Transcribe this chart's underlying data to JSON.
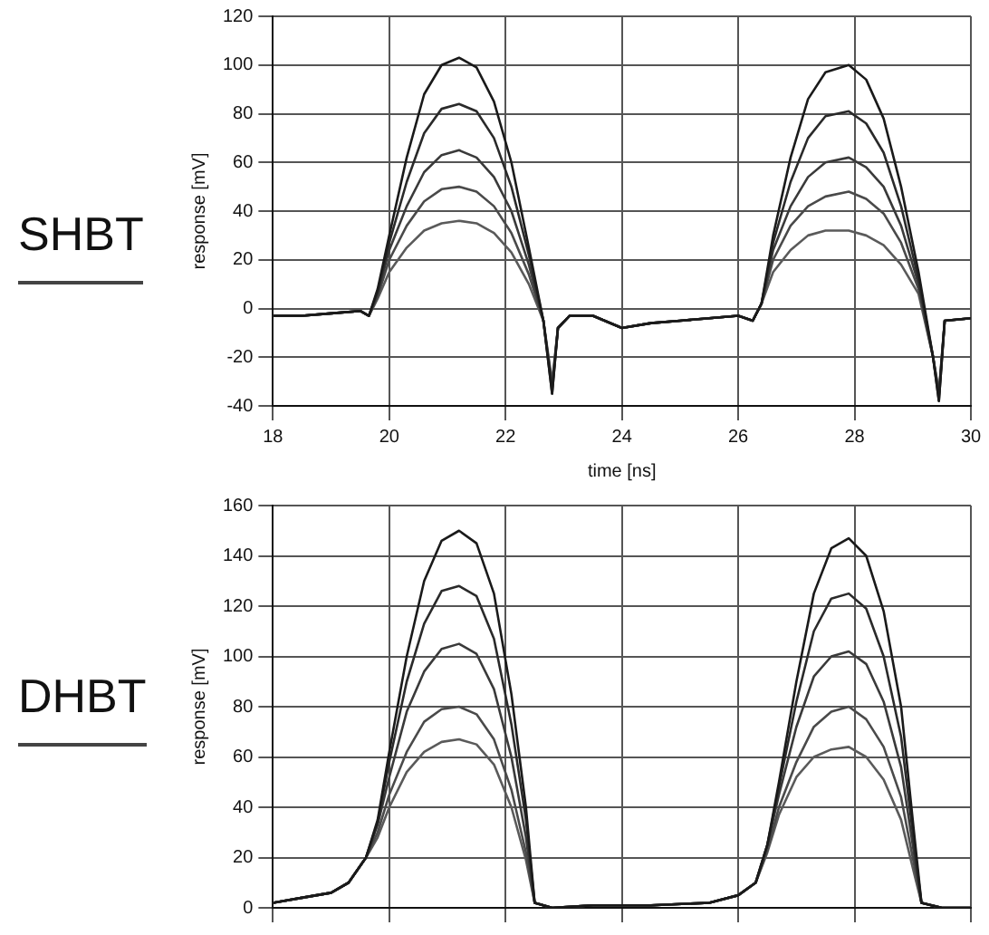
{
  "chart_data": [
    {
      "type": "line",
      "title": "SHBT",
      "xlabel": "time [ns]",
      "ylabel": "response [mV]",
      "xlim": [
        18,
        30
      ],
      "xticks": [
        18,
        20,
        22,
        24,
        26,
        28,
        30
      ],
      "ylim": [
        -40,
        120
      ],
      "yticks": [
        -40,
        -20,
        0,
        20,
        40,
        60,
        80,
        100,
        120
      ],
      "grid": true,
      "legend": false,
      "marker": "none",
      "line_style": "solid",
      "x": [
        18,
        18.5,
        19,
        19.5,
        19.65,
        19.8,
        20,
        20.3,
        20.6,
        20.9,
        21.2,
        21.5,
        21.8,
        22.1,
        22.4,
        22.65,
        22.8,
        22.9,
        23.1,
        23.5,
        24,
        24.5,
        25,
        25.5,
        26,
        26.25,
        26.4,
        26.6,
        26.9,
        27.2,
        27.5,
        27.9,
        28.2,
        28.5,
        28.8,
        29.1,
        29.35,
        29.45,
        29.55,
        30
      ],
      "series": [
        {
          "color": "#1a1a1a",
          "values": [
            -3,
            -3,
            -2,
            -1,
            -3,
            8,
            30,
            62,
            88,
            100,
            103,
            99,
            85,
            60,
            25,
            -5,
            -35,
            -8,
            -3,
            -3,
            -8,
            -6,
            -5,
            -4,
            -3,
            -5,
            2,
            30,
            62,
            86,
            97,
            100,
            94,
            78,
            50,
            15,
            -20,
            -38,
            -5,
            -4
          ]
        },
        {
          "color": "#2a2a2a",
          "values": [
            -3,
            -3,
            -2,
            -1,
            -3,
            7,
            27,
            52,
            72,
            82,
            84,
            81,
            70,
            50,
            22,
            -5,
            -35,
            -8,
            -3,
            -3,
            -8,
            -6,
            -5,
            -4,
            -3,
            -5,
            2,
            27,
            52,
            70,
            79,
            81,
            76,
            64,
            42,
            12,
            -20,
            -38,
            -5,
            -4
          ]
        },
        {
          "color": "#3a3a3a",
          "values": [
            -3,
            -3,
            -2,
            -1,
            -3,
            6,
            24,
            42,
            56,
            63,
            65,
            62,
            54,
            40,
            18,
            -5,
            -33,
            -8,
            -3,
            -3,
            -8,
            -6,
            -5,
            -4,
            -3,
            -5,
            2,
            24,
            42,
            54,
            60,
            62,
            58,
            50,
            34,
            10,
            -20,
            -36,
            -5,
            -4
          ]
        },
        {
          "color": "#4a4a4a",
          "values": [
            -3,
            -3,
            -2,
            -1,
            -3,
            5,
            20,
            34,
            44,
            49,
            50,
            48,
            42,
            31,
            14,
            -5,
            -32,
            -8,
            -3,
            -3,
            -8,
            -6,
            -5,
            -4,
            -3,
            -5,
            2,
            20,
            34,
            42,
            46,
            48,
            45,
            39,
            27,
            8,
            -20,
            -35,
            -5,
            -4
          ]
        },
        {
          "color": "#5a5a5a",
          "values": [
            -3,
            -3,
            -2,
            -1,
            -3,
            4,
            15,
            25,
            32,
            35,
            36,
            35,
            31,
            23,
            10,
            -5,
            -30,
            -8,
            -3,
            -3,
            -8,
            -6,
            -5,
            -4,
            -3,
            -5,
            2,
            15,
            24,
            30,
            32,
            32,
            30,
            26,
            18,
            6,
            -20,
            -34,
            -5,
            -4
          ]
        }
      ]
    },
    {
      "type": "line",
      "title": "DHBT",
      "ylabel": "response [mV]",
      "xlim": [
        18,
        30
      ],
      "xticks": [
        18,
        20,
        22,
        24,
        26,
        28,
        30
      ],
      "ylim": [
        0,
        160
      ],
      "yticks": [
        0,
        20,
        40,
        60,
        80,
        100,
        120,
        140,
        160
      ],
      "grid": true,
      "legend": false,
      "marker": "none",
      "line_style": "solid",
      "tick_labels": "y",
      "x": [
        18,
        18.5,
        19,
        19.3,
        19.6,
        19.8,
        20,
        20.3,
        20.6,
        20.9,
        21.2,
        21.5,
        21.8,
        22.1,
        22.35,
        22.5,
        22.8,
        23.5,
        24.5,
        25.5,
        26,
        26.3,
        26.5,
        26.7,
        27,
        27.3,
        27.6,
        27.9,
        28.2,
        28.5,
        28.8,
        29,
        29.15,
        29.5,
        30
      ],
      "series": [
        {
          "color": "#1a1a1a",
          "values": [
            2,
            4,
            6,
            10,
            20,
            35,
            62,
            100,
            130,
            146,
            150,
            145,
            125,
            85,
            40,
            2,
            0,
            1,
            1,
            2,
            5,
            10,
            25,
            50,
            90,
            125,
            143,
            147,
            140,
            118,
            80,
            35,
            2,
            0,
            0
          ]
        },
        {
          "color": "#2a2a2a",
          "values": [
            2,
            4,
            6,
            10,
            20,
            34,
            58,
            90,
            113,
            126,
            128,
            124,
            107,
            73,
            35,
            2,
            0,
            1,
            1,
            2,
            5,
            10,
            25,
            48,
            82,
            110,
            123,
            125,
            119,
            100,
            68,
            30,
            2,
            0,
            0
          ]
        },
        {
          "color": "#3a3a3a",
          "values": [
            2,
            4,
            6,
            10,
            20,
            33,
            52,
            78,
            94,
            103,
            105,
            101,
            87,
            60,
            28,
            2,
            0,
            1,
            1,
            2,
            5,
            10,
            25,
            45,
            72,
            92,
            100,
            102,
            97,
            82,
            56,
            25,
            2,
            0,
            0
          ]
        },
        {
          "color": "#4a4a4a",
          "values": [
            2,
            4,
            6,
            10,
            20,
            30,
            45,
            62,
            74,
            79,
            80,
            77,
            67,
            47,
            22,
            2,
            0,
            1,
            1,
            2,
            5,
            10,
            23,
            40,
            58,
            72,
            78,
            80,
            75,
            64,
            44,
            20,
            2,
            0,
            0
          ]
        },
        {
          "color": "#5a5a5a",
          "values": [
            2,
            4,
            6,
            10,
            20,
            28,
            40,
            54,
            62,
            66,
            67,
            65,
            57,
            40,
            19,
            2,
            0,
            1,
            1,
            2,
            5,
            10,
            22,
            37,
            52,
            60,
            63,
            64,
            60,
            51,
            35,
            16,
            2,
            0,
            0
          ]
        }
      ]
    }
  ]
}
